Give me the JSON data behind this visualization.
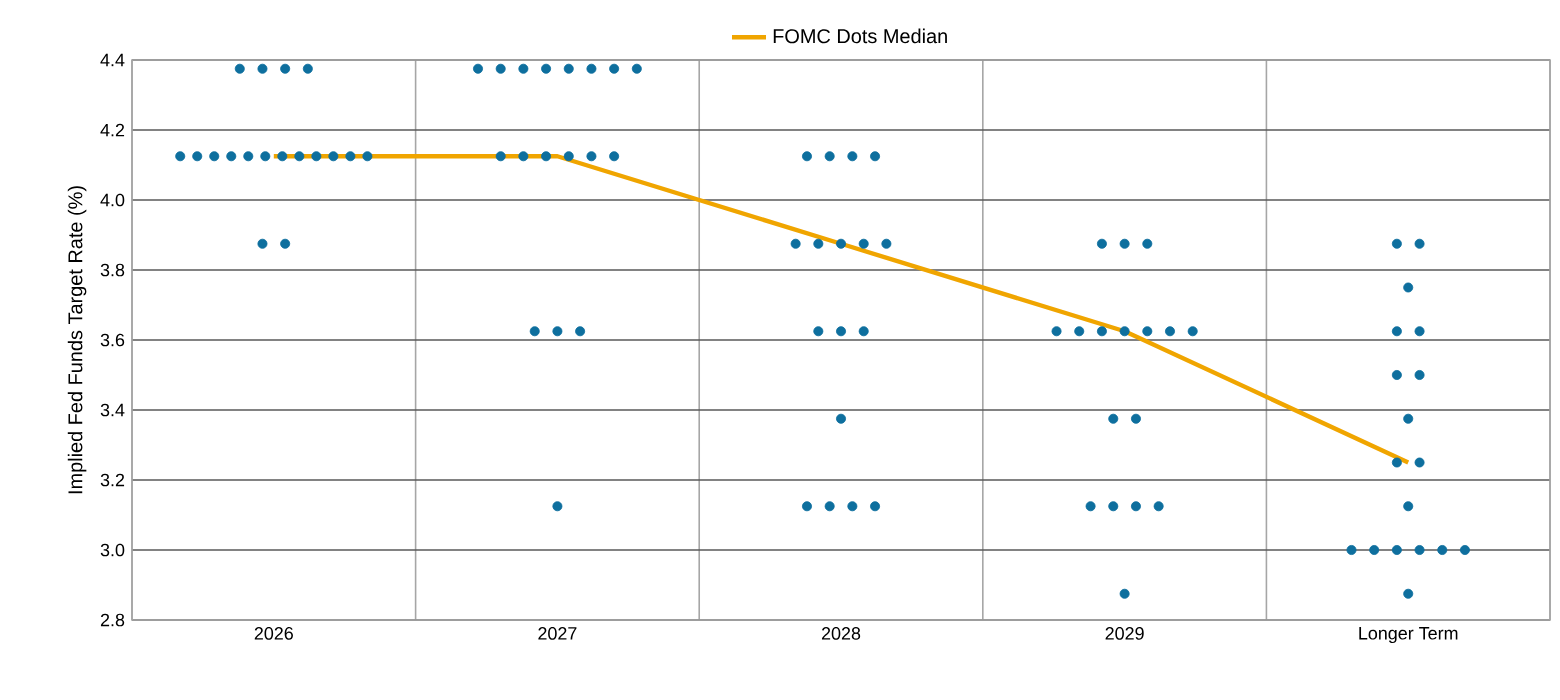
{
  "chart_data": {
    "type": "scatter",
    "ylabel": "Implied Fed Funds Target Rate (%)",
    "xlim": [
      2025.5,
      2030.5
    ],
    "xticks": [
      2026,
      2027,
      2028,
      2029,
      {
        "value": 2030,
        "label": "Longer Term"
      }
    ],
    "ylim": [
      2.8,
      4.4
    ],
    "yticks": [
      2.8,
      {
        "value": 3.0,
        "label": "3.0"
      },
      3.2,
      3.4,
      3.6,
      3.8,
      {
        "value": 4.0,
        "label": "4.0"
      },
      4.2,
      4.4
    ],
    "grid": true,
    "legend": "top",
    "series": [
      {
        "color": "#0e6f9e",
        "marker": "circle",
        "x": [
          2025.88,
          2025.96,
          2026.04,
          2026.12,
          2025.67,
          2025.73,
          2025.79,
          2025.85,
          2025.91,
          2025.97,
          2026.03,
          2026.09,
          2026.15,
          2026.21,
          2026.27,
          2026.33,
          2025.96,
          2026.04,
          2026.72,
          2026.8,
          2026.88,
          2026.96,
          2027.04,
          2027.12,
          2027.2,
          2027.28,
          2026.8,
          2026.88,
          2026.96,
          2027.04,
          2027.12,
          2027.2,
          2026.92,
          2027,
          2027.08,
          2027,
          2027.88,
          2027.96,
          2028.04,
          2028.12,
          2027.84,
          2027.92,
          2028,
          2028.08,
          2028.16,
          2027.92,
          2028,
          2028.08,
          2028,
          2027.88,
          2027.96,
          2028.04,
          2028.12,
          2028.92,
          2029,
          2029.08,
          2028.76,
          2028.84,
          2028.92,
          2029,
          2029.08,
          2029.16,
          2029.24,
          2028.96,
          2029.04,
          2028.88,
          2028.96,
          2029.04,
          2029.12,
          2029,
          2029.96,
          2030.04,
          2030,
          2029.96,
          2030.04,
          2029.96,
          2030.04,
          2030,
          2029.96,
          2030.04,
          2030,
          2029.8,
          2029.88,
          2029.96,
          2030.04,
          2030.12,
          2030.2,
          2030
        ],
        "values": [
          4.375,
          4.375,
          4.375,
          4.375,
          4.125,
          4.125,
          4.125,
          4.125,
          4.125,
          4.125,
          4.125,
          4.125,
          4.125,
          4.125,
          4.125,
          4.125,
          3.875,
          3.875,
          4.375,
          4.375,
          4.375,
          4.375,
          4.375,
          4.375,
          4.375,
          4.375,
          4.125,
          4.125,
          4.125,
          4.125,
          4.125,
          4.125,
          3.625,
          3.625,
          3.625,
          3.125,
          4.125,
          4.125,
          4.125,
          4.125,
          3.875,
          3.875,
          3.875,
          3.875,
          3.875,
          3.625,
          3.625,
          3.625,
          3.375,
          3.125,
          3.125,
          3.125,
          3.125,
          3.875,
          3.875,
          3.875,
          3.625,
          3.625,
          3.625,
          3.625,
          3.625,
          3.625,
          3.625,
          3.375,
          3.375,
          3.125,
          3.125,
          3.125,
          3.125,
          2.875,
          3.875,
          3.875,
          3.75,
          3.625,
          3.625,
          3.5,
          3.5,
          3.375,
          3.25,
          3.25,
          3.125,
          3.0,
          3.0,
          3.0,
          3.0,
          3.0,
          3.0,
          2.875
        ]
      },
      {
        "type": "line",
        "name": "FOMC Dots Median",
        "color": "#f0a500",
        "marker": "none",
        "x": [
          2026,
          2027,
          2028,
          2029,
          2030
        ],
        "values": [
          4.125,
          4.125,
          3.875,
          3.625,
          3.25
        ]
      }
    ]
  }
}
